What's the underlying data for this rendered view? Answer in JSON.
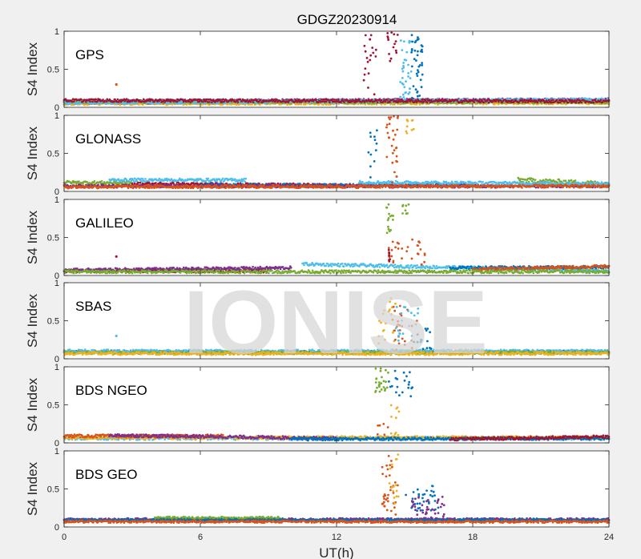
{
  "chart_data": {
    "type": "scatter",
    "title": "GDGZ20230914",
    "xlabel": "UT(h)",
    "watermark": "IONISE",
    "xlim": [
      0,
      24
    ],
    "xticks": [
      0,
      6,
      12,
      18,
      24
    ],
    "ylim": [
      0,
      1
    ],
    "yticks": [
      0,
      0.5,
      1
    ],
    "ytick_labels": [
      "0",
      "0.5",
      "1"
    ],
    "grid": false,
    "series_colors": [
      "#0072BD",
      "#D95319",
      "#EDB120",
      "#7E2F8E",
      "#77AC30",
      "#4DBEEE",
      "#A2142F"
    ],
    "panels": [
      {
        "label": "GPS",
        "ylabel": "S4 Index",
        "baseline": [
          {
            "color": 0,
            "x": [
              0,
              24
            ],
            "y": [
              0.07,
              0.09
            ],
            "amp": 0.02
          },
          {
            "color": 1,
            "x": [
              0,
              24
            ],
            "y": [
              0.06,
              0.08
            ],
            "amp": 0.02
          },
          {
            "color": 2,
            "x": [
              0,
              24
            ],
            "y": [
              0.05,
              0.06
            ],
            "amp": 0.02
          },
          {
            "color": 3,
            "x": [
              0,
              24
            ],
            "y": [
              0.08,
              0.1
            ],
            "amp": 0.02
          },
          {
            "color": 4,
            "x": [
              0,
              24
            ],
            "y": [
              0.07,
              0.07
            ],
            "amp": 0.02
          },
          {
            "color": 5,
            "x": [
              0,
              24
            ],
            "y": [
              0.06,
              0.1
            ],
            "amp": 0.02
          },
          {
            "color": 6,
            "x": [
              0,
              24
            ],
            "y": [
              0.09,
              0.08
            ],
            "amp": 0.02
          }
        ],
        "bursts": [
          {
            "color": 6,
            "x": [
              13.2,
              13.8
            ],
            "y": [
              0.15,
              0.95
            ],
            "n": 20
          },
          {
            "color": 6,
            "x": [
              14.2,
              14.7
            ],
            "y": [
              0.6,
              1.0
            ],
            "n": 15
          },
          {
            "color": 5,
            "x": [
              14.8,
              15.3
            ],
            "y": [
              0.1,
              0.9
            ],
            "n": 35
          },
          {
            "color": 0,
            "x": [
              15.3,
              15.8
            ],
            "y": [
              0.1,
              0.95
            ],
            "n": 40
          }
        ],
        "points": [
          {
            "color": 1,
            "x": 2.3,
            "y": 0.3
          }
        ]
      },
      {
        "label": "GLONASS",
        "ylabel": "S4 Index",
        "baseline": [
          {
            "color": 4,
            "x": [
              0,
              3
            ],
            "y": [
              0.12,
              0.11
            ],
            "amp": 0.02
          },
          {
            "color": 5,
            "x": [
              2,
              8
            ],
            "y": [
              0.15,
              0.15
            ],
            "amp": 0.02
          },
          {
            "color": 6,
            "x": [
              3,
              12
            ],
            "y": [
              0.1,
              0.08
            ],
            "amp": 0.02
          },
          {
            "color": 0,
            "x": [
              6,
              18
            ],
            "y": [
              0.08,
              0.08
            ],
            "amp": 0.02
          },
          {
            "color": 3,
            "x": [
              0,
              24
            ],
            "y": [
              0.07,
              0.07
            ],
            "amp": 0.02
          },
          {
            "color": 4,
            "x": [
              20,
              24
            ],
            "y": [
              0.15,
              0.1
            ],
            "amp": 0.03
          },
          {
            "color": 5,
            "x": [
              13,
              24
            ],
            "y": [
              0.12,
              0.1
            ],
            "amp": 0.02
          },
          {
            "color": 1,
            "x": [
              0,
              24
            ],
            "y": [
              0.06,
              0.07
            ],
            "amp": 0.02
          }
        ],
        "bursts": [
          {
            "color": 0,
            "x": [
              13.4,
              13.8
            ],
            "y": [
              0.1,
              1.0
            ],
            "n": 12
          },
          {
            "color": 1,
            "x": [
              14.2,
              14.8
            ],
            "y": [
              0.1,
              1.0
            ],
            "n": 30
          },
          {
            "color": 2,
            "x": [
              15.0,
              15.4
            ],
            "y": [
              0.75,
              0.98
            ],
            "n": 10
          }
        ],
        "points": []
      },
      {
        "label": "GALILEO",
        "ylabel": "S4 Index",
        "baseline": [
          {
            "color": 6,
            "x": [
              0,
              9
            ],
            "y": [
              0.06,
              0.06
            ],
            "amp": 0.02
          },
          {
            "color": 3,
            "x": [
              0,
              10
            ],
            "y": [
              0.07,
              0.1
            ],
            "amp": 0.02
          },
          {
            "color": 5,
            "x": [
              10.5,
              24
            ],
            "y": [
              0.15,
              0.06
            ],
            "amp": 0.02
          },
          {
            "color": 0,
            "x": [
              17,
              24
            ],
            "y": [
              0.1,
              0.11
            ],
            "amp": 0.02
          },
          {
            "color": 1,
            "x": [
              18,
              24
            ],
            "y": [
              0.08,
              0.12
            ],
            "amp": 0.02
          },
          {
            "color": 4,
            "x": [
              0,
              24
            ],
            "y": [
              0.05,
              0.05
            ],
            "amp": 0.02
          }
        ],
        "bursts": [
          {
            "color": 4,
            "x": [
              14.2,
              14.5
            ],
            "y": [
              0.55,
              0.95
            ],
            "n": 15
          },
          {
            "color": 4,
            "x": [
              14.9,
              15.2
            ],
            "y": [
              0.8,
              0.95
            ],
            "n": 8
          },
          {
            "color": 1,
            "x": [
              14.3,
              16.0
            ],
            "y": [
              0.1,
              0.5
            ],
            "n": 30
          },
          {
            "color": 6,
            "x": [
              14.3,
              14.4
            ],
            "y": [
              0.05,
              0.35
            ],
            "n": 8
          }
        ],
        "points": [
          {
            "color": 6,
            "x": 2.3,
            "y": 0.25
          }
        ]
      },
      {
        "label": "SBAS",
        "ylabel": "S4 Index",
        "baseline": [
          {
            "color": 0,
            "x": [
              0,
              24
            ],
            "y": [
              0.09,
              0.09
            ],
            "amp": 0.02
          },
          {
            "color": 5,
            "x": [
              0,
              24
            ],
            "y": [
              0.1,
              0.1
            ],
            "amp": 0.02
          },
          {
            "color": 4,
            "x": [
              0,
              24
            ],
            "y": [
              0.08,
              0.08
            ],
            "amp": 0.02
          },
          {
            "color": 2,
            "x": [
              0,
              24
            ],
            "y": [
              0.07,
              0.07
            ],
            "amp": 0.02
          }
        ],
        "bursts": [
          {
            "color": 2,
            "x": [
              13.8,
              14.6
            ],
            "y": [
              0.2,
              0.8
            ],
            "n": 20
          },
          {
            "color": 1,
            "x": [
              14.3,
              15.8
            ],
            "y": [
              0.1,
              0.7
            ],
            "n": 25
          },
          {
            "color": 5,
            "x": [
              14.6,
              15.6
            ],
            "y": [
              0.2,
              0.7
            ],
            "n": 20
          },
          {
            "color": 0,
            "x": [
              15.4,
              16.2
            ],
            "y": [
              0.1,
              0.4
            ],
            "n": 15
          }
        ],
        "points": [
          {
            "color": 5,
            "x": 2.3,
            "y": 0.3
          }
        ]
      },
      {
        "label": "BDS NGEO",
        "ylabel": "S4 Index",
        "baseline": [
          {
            "color": 5,
            "x": [
              0,
              24
            ],
            "y": [
              0.06,
              0.06
            ],
            "amp": 0.02
          },
          {
            "color": 2,
            "x": [
              0,
              24
            ],
            "y": [
              0.07,
              0.07
            ],
            "amp": 0.02
          },
          {
            "color": 1,
            "x": [
              0,
              7
            ],
            "y": [
              0.09,
              0.09
            ],
            "amp": 0.02
          },
          {
            "color": 3,
            "x": [
              2,
              12
            ],
            "y": [
              0.1,
              0.06
            ],
            "amp": 0.02
          },
          {
            "color": 0,
            "x": [
              10,
              24
            ],
            "y": [
              0.05,
              0.06
            ],
            "amp": 0.02
          },
          {
            "color": 6,
            "x": [
              17,
              24
            ],
            "y": [
              0.05,
              0.08
            ],
            "amp": 0.02
          }
        ],
        "bursts": [
          {
            "color": 4,
            "x": [
              13.6,
              14.3
            ],
            "y": [
              0.65,
              0.98
            ],
            "n": 25
          },
          {
            "color": 0,
            "x": [
              14.3,
              15.4
            ],
            "y": [
              0.6,
              0.95
            ],
            "n": 20
          },
          {
            "color": 2,
            "x": [
              14.3,
              14.8
            ],
            "y": [
              0.1,
              0.5
            ],
            "n": 10
          },
          {
            "color": 1,
            "x": [
              13.8,
              14.3
            ],
            "y": [
              0.1,
              0.25
            ],
            "n": 6
          }
        ],
        "points": []
      },
      {
        "label": "BDS GEO",
        "ylabel": "S4 Index",
        "baseline": [
          {
            "color": 3,
            "x": [
              0,
              24
            ],
            "y": [
              0.1,
              0.1
            ],
            "amp": 0.015
          },
          {
            "color": 4,
            "x": [
              4,
              9.5
            ],
            "y": [
              0.12,
              0.12
            ],
            "amp": 0.015
          },
          {
            "color": 0,
            "x": [
              0,
              24
            ],
            "y": [
              0.09,
              0.09
            ],
            "amp": 0.015
          },
          {
            "color": 1,
            "x": [
              0,
              24
            ],
            "y": [
              0.07,
              0.07
            ],
            "amp": 0.015
          }
        ],
        "bursts": [
          {
            "color": 1,
            "x": [
              14.0,
              14.7
            ],
            "y": [
              0.15,
              0.95
            ],
            "n": 35
          },
          {
            "color": 2,
            "x": [
              14.3,
              14.8
            ],
            "y": [
              0.3,
              0.98
            ],
            "n": 15
          },
          {
            "color": 0,
            "x": [
              15.0,
              16.5
            ],
            "y": [
              0.2,
              0.55
            ],
            "n": 35
          },
          {
            "color": 3,
            "x": [
              15.3,
              16.8
            ],
            "y": [
              0.1,
              0.4
            ],
            "n": 40
          }
        ],
        "points": []
      }
    ]
  }
}
